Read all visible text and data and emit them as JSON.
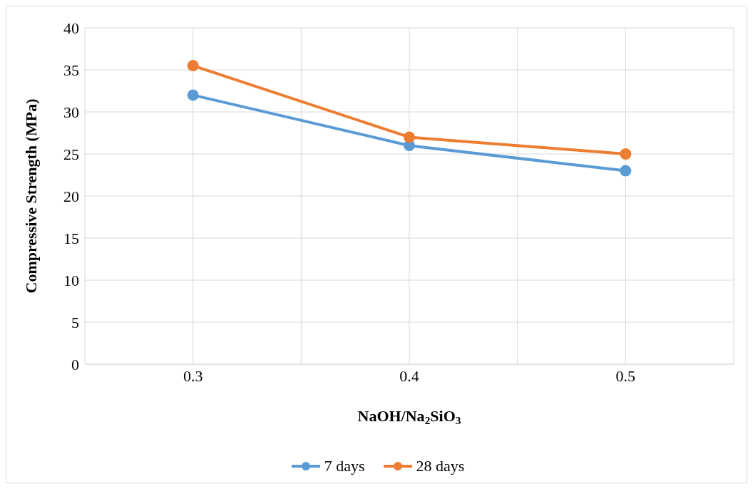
{
  "chart_data": {
    "type": "line",
    "xlabel": "NaOH/Na$_{2}$SiO$_{3}$",
    "ylabel": "Compressive Strength (MPa)",
    "x": [
      0.3,
      0.4,
      0.5
    ],
    "series": [
      {
        "name": "7 days",
        "color": "#5b9bd5",
        "values": [
          32,
          26,
          23
        ]
      },
      {
        "name": "28 days",
        "color": "#ed7d31",
        "values": [
          35.5,
          27,
          25
        ]
      }
    ],
    "xlim": [
      0.25,
      0.55
    ],
    "xticks": [
      {
        "value": 0.25,
        "label": null
      },
      0.3,
      {
        "value": 0.35,
        "label": null
      },
      0.4,
      {
        "value": 0.45,
        "label": null
      },
      0.5,
      {
        "value": 0.55,
        "label": null
      }
    ],
    "ylim": [
      0,
      40
    ],
    "yticks": [
      0,
      5,
      10,
      15,
      20,
      25,
      30,
      35,
      40
    ],
    "grid": true,
    "legend": "bottom",
    "marker": "circle",
    "line_style": "solid"
  }
}
